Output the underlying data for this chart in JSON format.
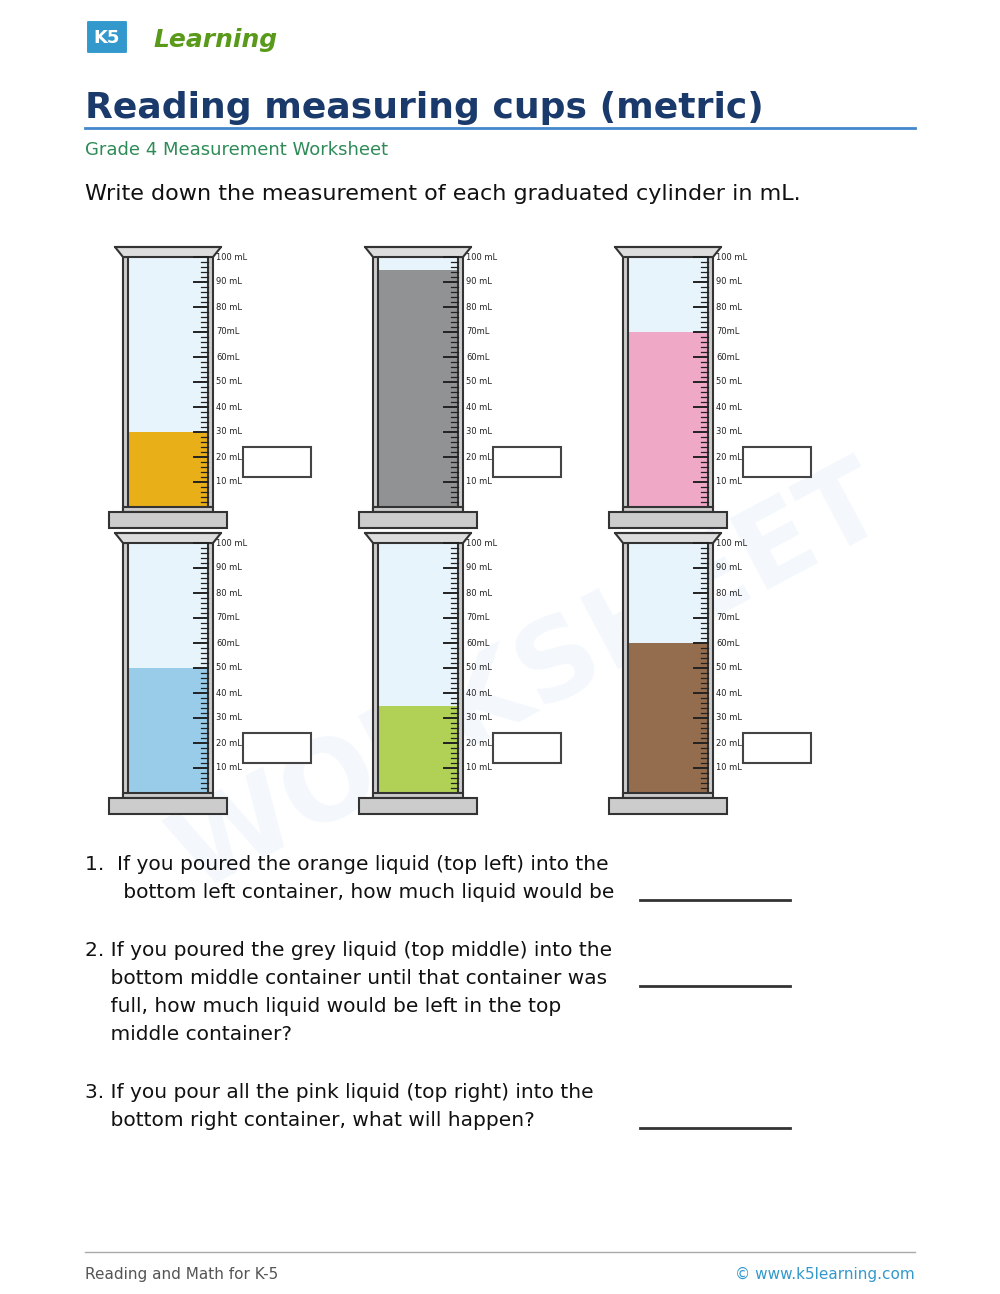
{
  "title": "Reading measuring cups (metric)",
  "subtitle": "Grade 4 Measurement Worksheet",
  "instruction": "Write down the measurement of each graduated cylinder in mL.",
  "cylinders": [
    {
      "liquid_level": 30,
      "liquid_color": "#E8A800",
      "max_ml": 100
    },
    {
      "liquid_level": 95,
      "liquid_color": "#888888",
      "max_ml": 100
    },
    {
      "liquid_level": 70,
      "liquid_color": "#F0A0C0",
      "max_ml": 100
    },
    {
      "liquid_level": 50,
      "liquid_color": "#90C8E8",
      "max_ml": 100
    },
    {
      "liquid_level": 35,
      "liquid_color": "#AACC44",
      "max_ml": 100
    },
    {
      "liquid_level": 60,
      "liquid_color": "#8B5E3C",
      "max_ml": 100
    }
  ],
  "tick_labels": {
    "10": "10 mL",
    "20": "20 mL",
    "30": "30 mL",
    "40": "40 mL",
    "50": "50 mL",
    "60": "60mL",
    "70": "70mL",
    "80": "80 mL",
    "100": "100 mL"
  },
  "questions": [
    {
      "text": [
        "1.  If you poured the orange liquid (top left) into the",
        "      bottom left container, how much liquid would be"
      ],
      "has_line": true,
      "line_at_last": true
    },
    {
      "text": [
        "2. If you poured the grey liquid (top middle) into the",
        "    bottom middle container until that container was",
        "    full, how much liquid would be left in the top",
        "    middle container?"
      ],
      "has_line": true,
      "line_at": 1
    },
    {
      "text": [
        "3. If you pour all the pink liquid (top right) into the",
        "    bottom right container, what will happen?"
      ],
      "has_line": true,
      "line_at_last": true
    }
  ],
  "footer_left": "Reading and Math for K-5",
  "footer_right": "© www.k5learning.com",
  "title_color": "#1a3a6b",
  "subtitle_color": "#2e8b57",
  "bg_color": "#ffffff"
}
